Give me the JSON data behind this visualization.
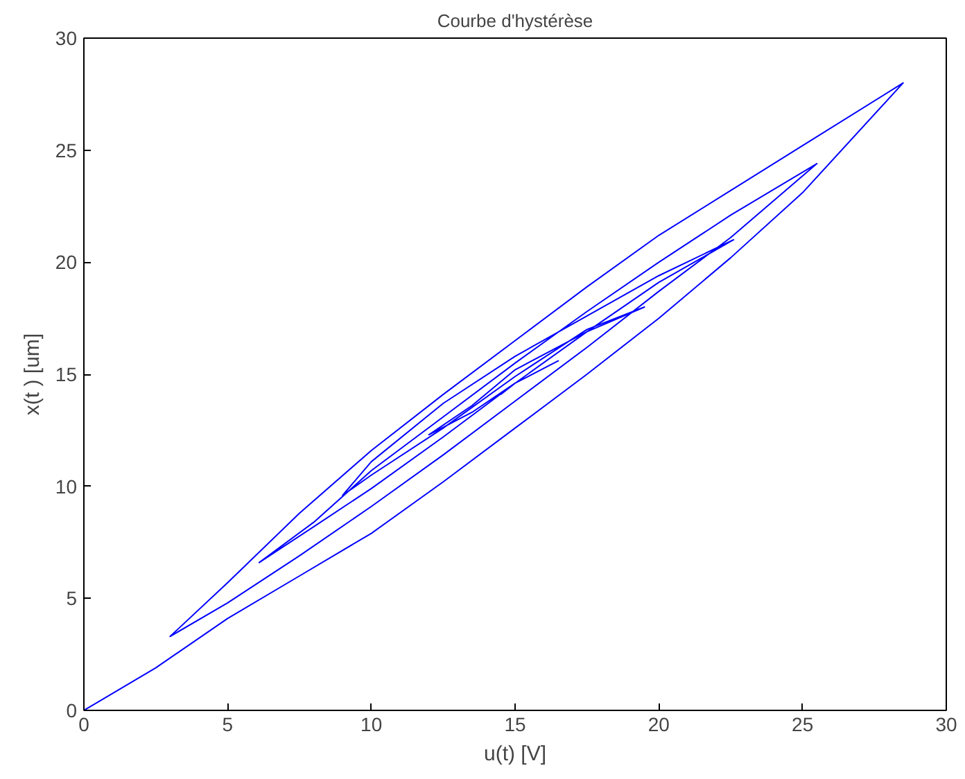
{
  "chart_data": {
    "type": "line",
    "title": "Courbe d'hystérèse",
    "xlabel": "u(t) [V]",
    "ylabel": "x(t ) [um]",
    "xlim": [
      0,
      30
    ],
    "ylim": [
      0,
      30
    ],
    "xticks": [
      0,
      5,
      10,
      15,
      20,
      25,
      30
    ],
    "yticks": [
      0,
      5,
      10,
      15,
      20,
      25,
      30
    ],
    "grid": false,
    "series": [
      {
        "color": "#0000ff",
        "x": [
          0,
          2.5,
          5,
          7.5,
          10,
          12.5,
          15,
          17.5,
          20,
          22.5,
          25,
          28.5,
          25,
          22.5,
          20,
          17.5,
          15,
          12.5,
          10,
          7.5,
          5,
          3,
          5,
          7.5,
          10,
          12.5,
          15,
          17.5,
          20,
          22.5,
          25.5,
          22.5,
          20,
          17.5,
          15,
          12.5,
          10,
          8,
          6.1,
          8,
          10,
          12.5,
          15,
          17.5,
          20,
          22.6,
          20,
          17.5,
          15,
          12.5,
          10,
          9,
          10,
          12.5,
          15,
          17.5,
          19.5,
          17.5,
          15,
          13.5,
          12,
          13.5,
          15,
          16.5,
          15,
          14.5,
          14.5
        ],
        "values": [
          0,
          1.9,
          4.1,
          6.0,
          7.9,
          10.2,
          12.6,
          15.0,
          17.5,
          20.2,
          23.1,
          28,
          25.2,
          23.2,
          21.2,
          18.9,
          16.5,
          14.1,
          11.6,
          8.8,
          5.7,
          3.3,
          4.8,
          6.9,
          9.1,
          11.4,
          13.8,
          16.2,
          18.7,
          21.1,
          24.4,
          22.1,
          20.0,
          17.8,
          15.5,
          13.1,
          10.7,
          8.4,
          6.6,
          8.2,
          9.9,
          12.2,
          14.6,
          16.9,
          19.1,
          21,
          19.4,
          17.6,
          15.8,
          13.7,
          11.1,
          9.6,
          10.5,
          12.6,
          14.9,
          17.0,
          18,
          16.9,
          15.2,
          13.6,
          12.3,
          13.3,
          14.6,
          15.6,
          14.6,
          14.1,
          14.1
        ]
      }
    ]
  }
}
